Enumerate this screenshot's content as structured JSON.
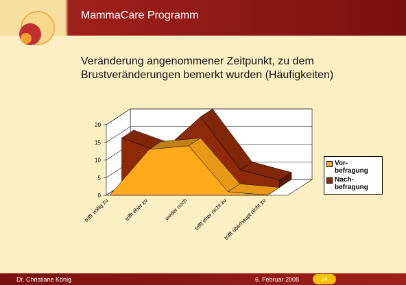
{
  "header": {
    "title": "MammaCare Programm"
  },
  "footer": {
    "author": "Dr. Christiane König",
    "date": "6. Februar 2008",
    "page": "24"
  },
  "chart_data": {
    "type": "area3d",
    "title": "Veränderung angenommener Zeitpunkt, zu dem Brustveränderungen bemerkt wurden (Häufigkeiten)",
    "categories": [
      "trifft völlig zu",
      "trifft eher zu",
      "weder noch",
      "trifft eher nicht zu",
      "trifft überhaupt nicht zu"
    ],
    "series": [
      {
        "name": "Vor-befragung",
        "color": "#ffaa1a",
        "values": [
          0,
          13,
          14,
          1,
          0
        ]
      },
      {
        "name": "Nach-befragung",
        "color": "#8e2a0a",
        "values": [
          14,
          10,
          20,
          5,
          2
        ]
      }
    ],
    "ylim": [
      0,
      20
    ],
    "yticks": [
      0,
      5,
      10,
      15,
      20
    ],
    "grid": true,
    "legend": "right"
  }
}
